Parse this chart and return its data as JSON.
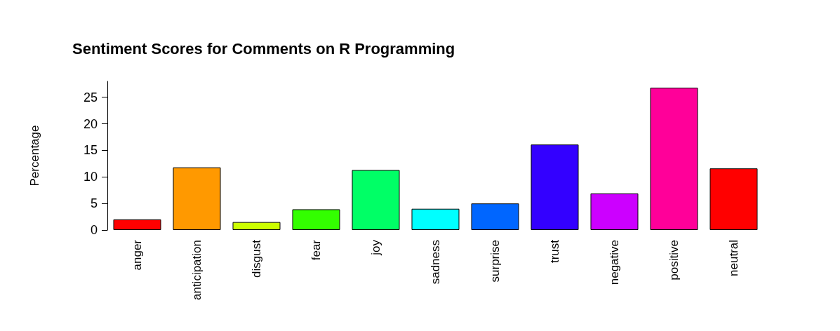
{
  "chart_data": {
    "type": "bar",
    "title": "Sentiment Scores for Comments on R Programming",
    "ylabel": "Percentage",
    "categories": [
      "anger",
      "anticipation",
      "disgust",
      "fear",
      "joy",
      "sadness",
      "surprise",
      "trust",
      "negative",
      "positive",
      "neutral"
    ],
    "values": [
      2.0,
      11.8,
      1.5,
      3.9,
      11.3,
      4.0,
      5.0,
      16.1,
      6.9,
      26.8,
      11.6
    ],
    "colors": [
      "#ff0000",
      "#ff9900",
      "#ccff00",
      "#33ff00",
      "#00ff66",
      "#00ffff",
      "#0066ff",
      "#3300ff",
      "#cc00ff",
      "#ff0099",
      "#ff0000"
    ],
    "ylim": [
      0,
      28
    ],
    "yticks": [
      0,
      5,
      10,
      15,
      20,
      25
    ],
    "grid": false
  }
}
